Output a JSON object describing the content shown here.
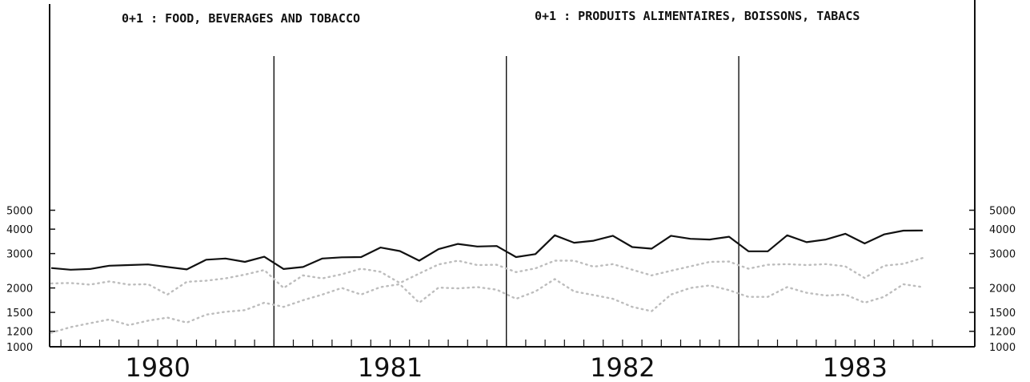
{
  "chart_data": {
    "type": "line",
    "title_left": "0+1 : FOOD, BEVERAGES AND TOBACCO",
    "title_right": "0+1 : PRODUITS ALIMENTAIRES, BOISSONS, TABACS",
    "y_scale": "log",
    "ylim": [
      1000,
      6000
    ],
    "yticks": [
      1000,
      1200,
      1500,
      2000,
      3000,
      4000,
      5000
    ],
    "ytick_labels_left": [
      "1000",
      "1200",
      "1500",
      "2000",
      "3000",
      "4000",
      "5000"
    ],
    "ytick_labels_right": [
      "1000",
      "1200",
      "1500",
      "2000",
      "3000",
      "4000",
      "5000"
    ],
    "x_start": 1980.0,
    "x_step_months": 1,
    "year_labels": [
      "1980",
      "1981",
      "1982",
      "1983"
    ],
    "year_dividers": [
      1981.0,
      1982.0,
      1983.0
    ],
    "grid": false,
    "series": [
      {
        "style": "solid",
        "values": [
          2530,
          2480,
          2500,
          2600,
          2620,
          2640,
          2560,
          2490,
          2790,
          2830,
          2720,
          2890,
          2500,
          2560,
          2830,
          2870,
          2880,
          3220,
          3090,
          2760,
          3160,
          3360,
          3260,
          3280,
          2880,
          2980,
          3720,
          3410,
          3490,
          3700,
          3240,
          3180,
          3700,
          3570,
          3540,
          3660,
          3080,
          3080,
          3720,
          3430,
          3540,
          3790,
          3380,
          3760,
          3930,
          3940
        ]
      },
      {
        "style": "dotted",
        "values": [
          2110,
          2120,
          2080,
          2160,
          2080,
          2090,
          1850,
          2150,
          2180,
          2240,
          2340,
          2470,
          2000,
          2320,
          2240,
          2350,
          2510,
          2420,
          2120,
          2370,
          2640,
          2760,
          2620,
          2630,
          2410,
          2520,
          2760,
          2760,
          2570,
          2650,
          2480,
          2320,
          2450,
          2580,
          2720,
          2730,
          2510,
          2630,
          2650,
          2620,
          2650,
          2580,
          2250,
          2600,
          2660,
          2850
        ]
      },
      {
        "style": "dotted",
        "values": [
          1180,
          1260,
          1320,
          1380,
          1290,
          1360,
          1410,
          1330,
          1460,
          1510,
          1540,
          1680,
          1600,
          1730,
          1850,
          2000,
          1850,
          2020,
          2090,
          1680,
          2010,
          1990,
          2020,
          1960,
          1760,
          1920,
          2220,
          1920,
          1840,
          1760,
          1600,
          1520,
          1850,
          2000,
          2060,
          1950,
          1800,
          1800,
          2020,
          1890,
          1830,
          1850,
          1680,
          1800,
          2090,
          2020
        ]
      }
    ]
  }
}
